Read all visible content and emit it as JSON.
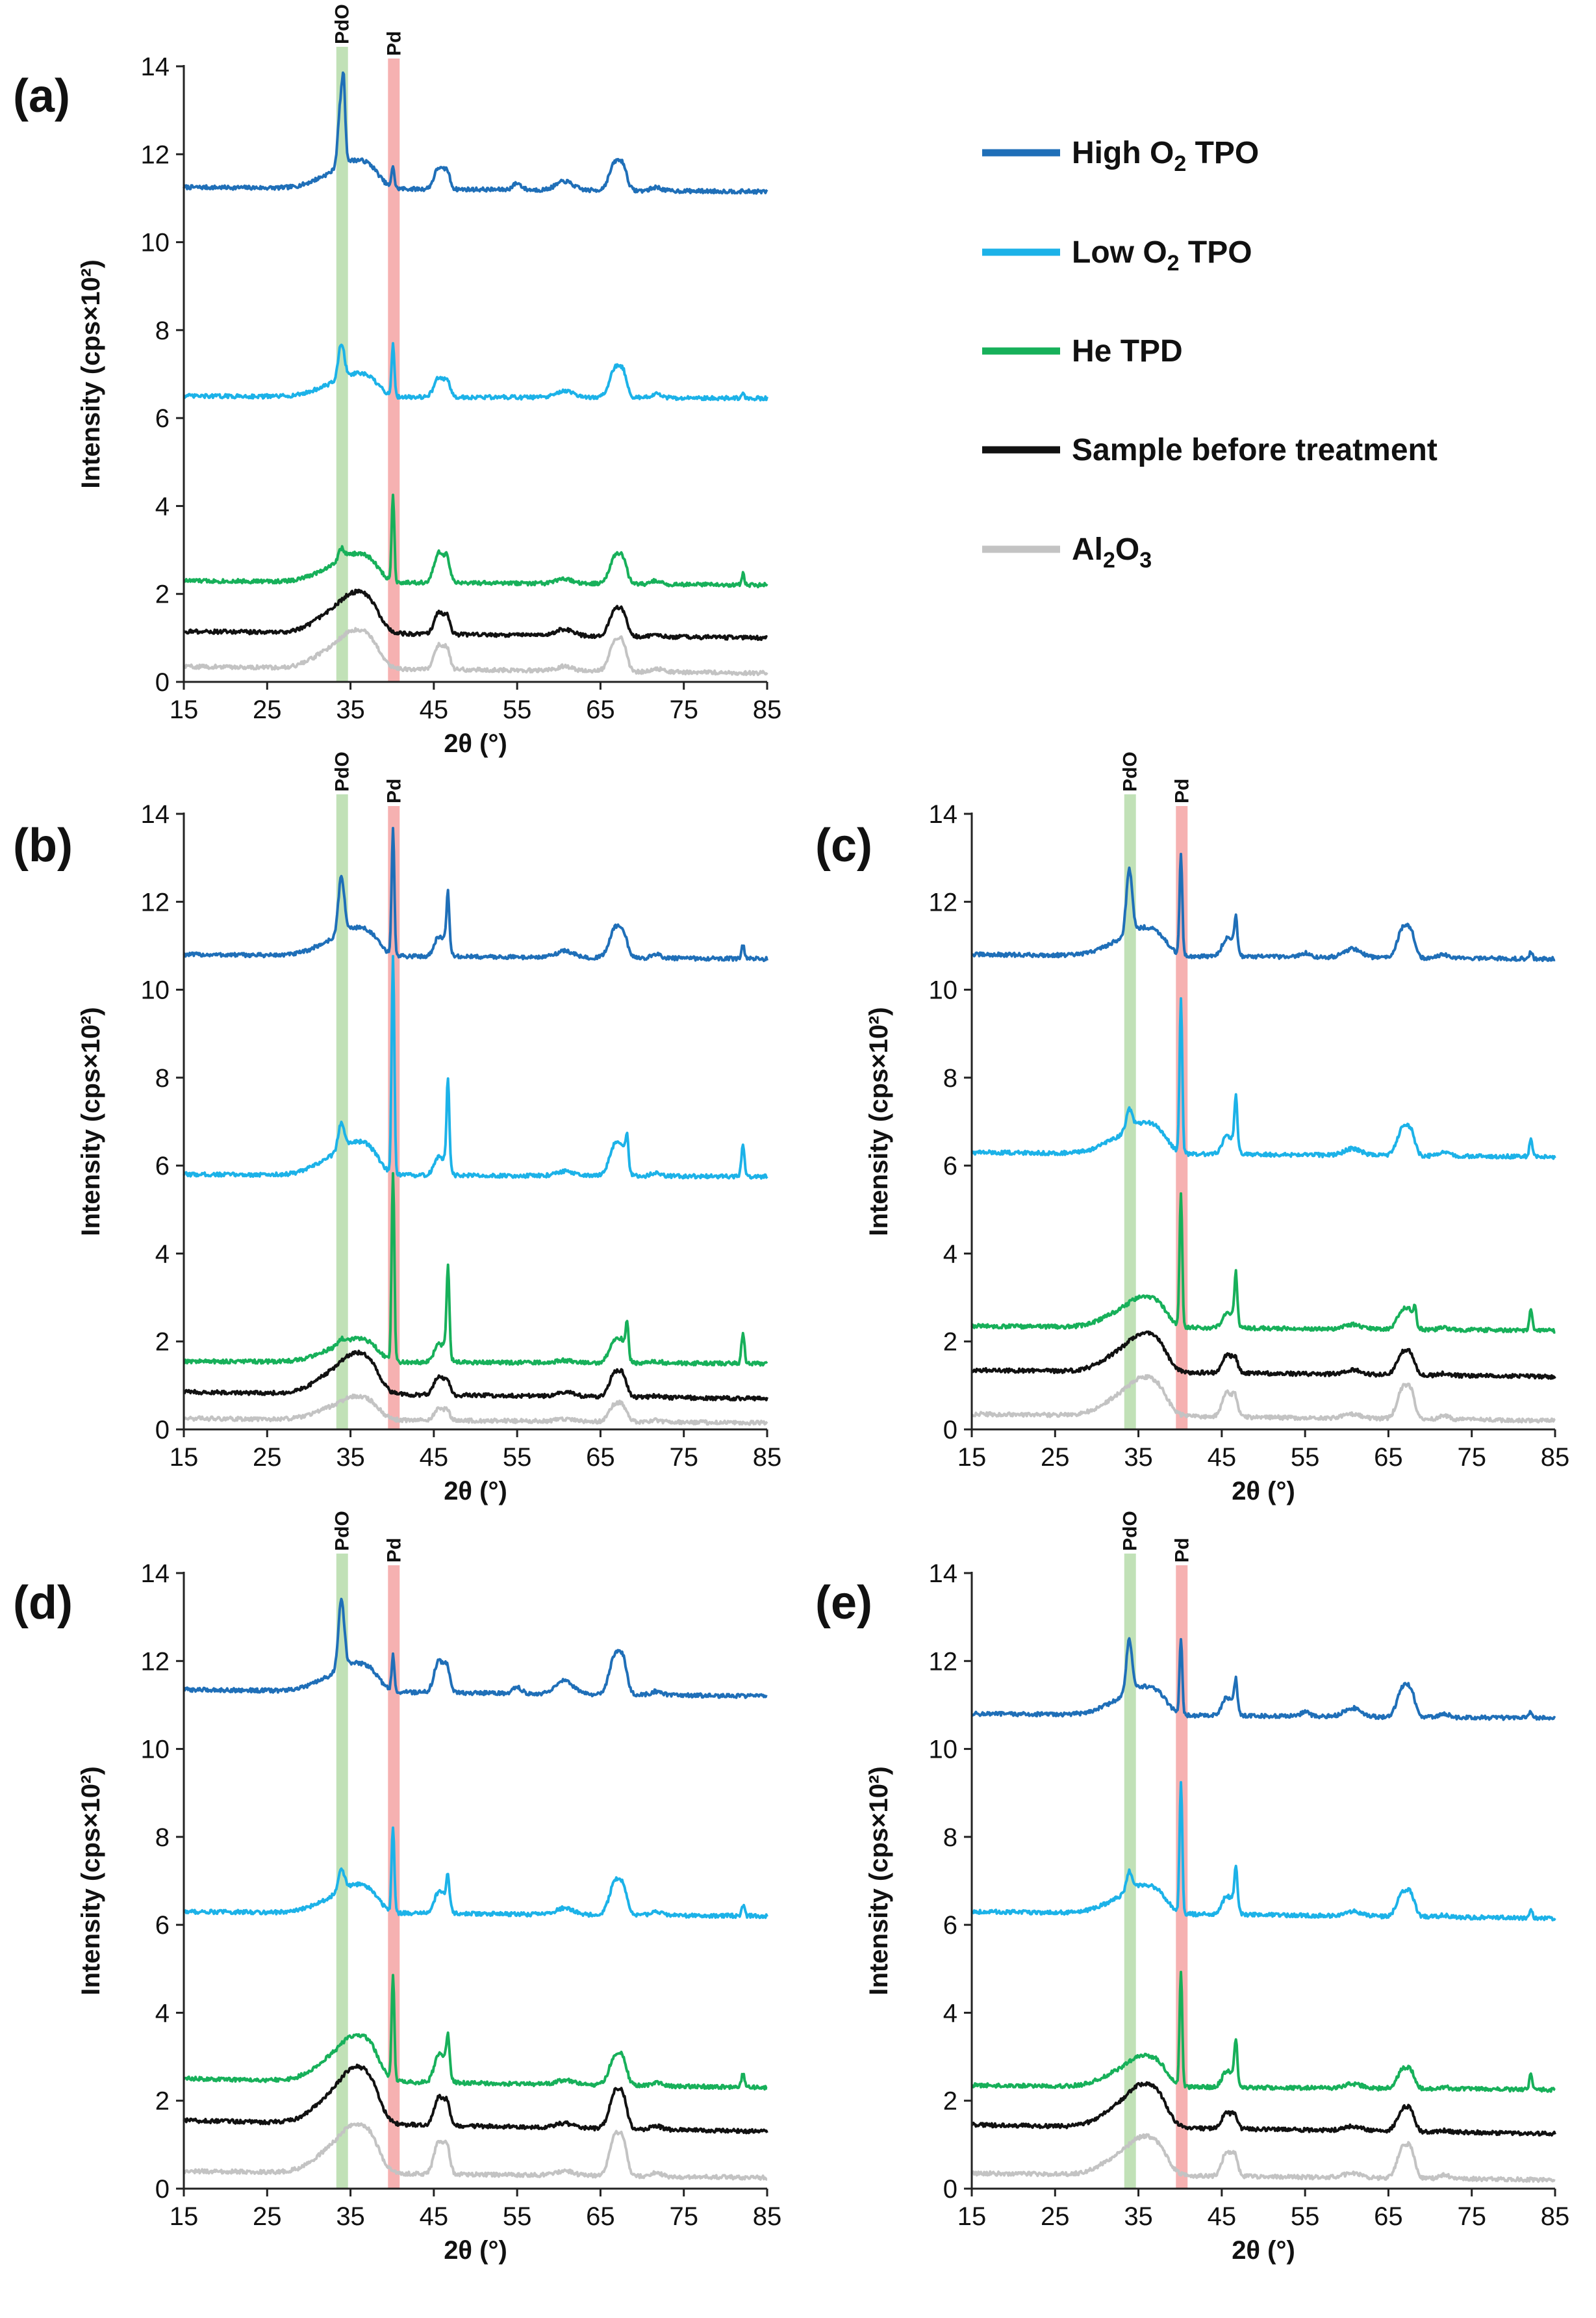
{
  "figure_labels": [
    "(a)",
    "(b)",
    "(c)",
    "(d)",
    "(e)"
  ],
  "axes": {
    "xlabel": "2θ (°)",
    "ylabel": "Intensity (cps×10²)",
    "x_ticks": [
      "15",
      "25",
      "35",
      "45",
      "55",
      "65",
      "75",
      "85"
    ],
    "y_ticks": [
      "0",
      "2",
      "4",
      "6",
      "8",
      "10",
      "12",
      "14"
    ]
  },
  "bands": {
    "PdO": {
      "label": "PdO",
      "x_range": [
        33.3,
        34.7
      ],
      "color": "#b6dcaa"
    },
    "Pd": {
      "label": "Pd",
      "x_range": [
        39.5,
        40.9
      ],
      "color": "#f4a3a3"
    }
  },
  "legend": [
    {
      "prefix": "High O",
      "sub": "2",
      "suffix": " TPO",
      "color": "#1f6fb8"
    },
    {
      "prefix": "Low O",
      "sub": "2",
      "suffix": " TPO",
      "color": "#1cb2e8"
    },
    {
      "prefix": "He TPD",
      "sub": "",
      "suffix": "",
      "color": "#17b05a"
    },
    {
      "prefix": "Sample before treatment",
      "sub": "",
      "suffix": "",
      "color": "#111111"
    },
    {
      "prefix": "Al",
      "sub": "2",
      "suffix": "O",
      "sub2": "3",
      "color": "#c3c3c3"
    }
  ],
  "chart_data": [
    {
      "panel": "(a)",
      "type": "line",
      "xlim": [
        15,
        85
      ],
      "ylim": [
        0,
        14
      ],
      "xlabel": "2θ (°)",
      "ylabel": "Intensity (cps×10²)",
      "series": [
        {
          "name": "High O2 TPO",
          "color": "#1f6fb8",
          "baseline": 11.25,
          "end": 11.15,
          "broad": 0.55,
          "pdo": 1.6,
          "pd": 0.5,
          "p46": 0.65,
          "p67": 0.8,
          "p55": 0.15,
          "p60": 0.2,
          "p82": 0.0,
          "sharp": [
            [
              34.2,
              0.9
            ]
          ]
        },
        {
          "name": "Low O2 TPO",
          "color": "#1cb2e8",
          "baseline": 6.5,
          "end": 6.45,
          "broad": 0.45,
          "pdo": 0.8,
          "pd": 1.2,
          "p46": 0.6,
          "p67": 0.85,
          "p55": 0.0,
          "p60": 0.15,
          "p82": 0.1,
          "sharp": []
        },
        {
          "name": "He TPD",
          "color": "#17b05a",
          "baseline": 2.3,
          "end": 2.2,
          "broad": 0.55,
          "pdo": 0.25,
          "pd": 1.95,
          "p46": 0.9,
          "p67": 0.8,
          "p55": 0.0,
          "p60": 0.1,
          "p82": 0.25,
          "sharp": []
        },
        {
          "name": "Sample before treatment",
          "color": "#111111",
          "baseline": 1.15,
          "end": 1.0,
          "broad": 0.8,
          "pdo": 0.0,
          "pd": 0.0,
          "p46": 0.65,
          "p67": 0.75,
          "p55": 0.0,
          "p60": 0.15,
          "p82": 0.0,
          "sharp": []
        },
        {
          "name": "Al2O3",
          "color": "#c3c3c3",
          "baseline": 0.35,
          "end": 0.2,
          "broad": 0.75,
          "pdo": 0.0,
          "pd": 0.0,
          "p46": 0.75,
          "p67": 0.9,
          "p55": 0.0,
          "p60": 0.1,
          "p82": 0.0,
          "sharp": []
        }
      ]
    },
    {
      "panel": "(b)",
      "type": "line",
      "xlim": [
        15,
        85
      ],
      "ylim": [
        0,
        14
      ],
      "xlabel": "2θ (°)",
      "ylabel": "Intensity (cps×10²)",
      "series": [
        {
          "name": "High O2 TPO",
          "color": "#1f6fb8",
          "baseline": 10.8,
          "end": 10.7,
          "broad": 0.55,
          "pdo": 1.3,
          "pd": 2.85,
          "p46": 0.6,
          "p67": 0.85,
          "p55": 0.0,
          "p60": 0.15,
          "p82": 0.3,
          "sharp": [
            [
              46.7,
              1.1
            ]
          ]
        },
        {
          "name": "Low O2 TPO",
          "color": "#1cb2e8",
          "baseline": 5.8,
          "end": 5.75,
          "broad": 0.65,
          "pdo": 0.6,
          "pd": 4.9,
          "p46": 0.55,
          "p67": 0.9,
          "p55": 0.0,
          "p60": 0.1,
          "p82": 0.75,
          "sharp": [
            [
              46.7,
              1.9
            ],
            [
              68.2,
              0.6
            ]
          ]
        },
        {
          "name": "He TPD",
          "color": "#17b05a",
          "baseline": 1.55,
          "end": 1.5,
          "broad": 0.45,
          "pdo": 0.1,
          "pd": 4.3,
          "p46": 0.55,
          "p67": 0.65,
          "p55": 0.0,
          "p60": 0.05,
          "p82": 0.7,
          "sharp": [
            [
              46.7,
              1.9
            ],
            [
              68.2,
              0.7
            ]
          ]
        },
        {
          "name": "Sample before treatment",
          "color": "#111111",
          "baseline": 0.85,
          "end": 0.7,
          "broad": 0.8,
          "pdo": 0.0,
          "pd": 0.0,
          "p46": 0.55,
          "p67": 0.7,
          "p55": 0.0,
          "p60": 0.1,
          "p82": 0.0,
          "sharp": []
        },
        {
          "name": "Al2O3",
          "color": "#c3c3c3",
          "baseline": 0.25,
          "end": 0.15,
          "broad": 0.45,
          "pdo": 0.0,
          "pd": 0.0,
          "p46": 0.35,
          "p67": 0.5,
          "p55": 0.0,
          "p60": 0.05,
          "p82": 0.0,
          "sharp": []
        }
      ]
    },
    {
      "panel": "(c)",
      "type": "line",
      "xlim": [
        15,
        85
      ],
      "ylim": [
        0,
        14
      ],
      "xlabel": "2θ (°)",
      "ylabel": "Intensity (cps×10²)",
      "series": [
        {
          "name": "High O2 TPO",
          "color": "#1f6fb8",
          "baseline": 10.8,
          "end": 10.7,
          "broad": 0.55,
          "pdo": 1.45,
          "pd": 2.3,
          "p46": 0.55,
          "p67": 0.85,
          "p55": 0.1,
          "p60": 0.2,
          "p82": 0.15,
          "sharp": [
            [
              46.7,
              0.6
            ]
          ]
        },
        {
          "name": "Low O2 TPO",
          "color": "#1cb2e8",
          "baseline": 6.3,
          "end": 6.2,
          "broad": 0.6,
          "pdo": 0.45,
          "pd": 3.5,
          "p46": 0.55,
          "p67": 0.8,
          "p55": 0.0,
          "p60": 0.15,
          "p82": 0.4,
          "sharp": [
            [
              46.7,
              1.0
            ]
          ]
        },
        {
          "name": "He TPD",
          "color": "#17b05a",
          "baseline": 2.35,
          "end": 2.25,
          "broad": 0.6,
          "pdo": 0.0,
          "pd": 3.0,
          "p46": 0.45,
          "p67": 0.55,
          "p55": 0.0,
          "p60": 0.1,
          "p82": 0.45,
          "sharp": [
            [
              46.7,
              1.0
            ],
            [
              68.2,
              0.3
            ]
          ]
        },
        {
          "name": "Sample before treatment",
          "color": "#111111",
          "baseline": 1.35,
          "end": 1.2,
          "broad": 0.75,
          "pdo": 0.0,
          "pd": 0.0,
          "p46": 0.55,
          "p67": 0.65,
          "p55": 0.0,
          "p60": 0.1,
          "p82": 0.0,
          "sharp": []
        },
        {
          "name": "Al2O3",
          "color": "#c3c3c3",
          "baseline": 0.35,
          "end": 0.2,
          "broad": 0.75,
          "pdo": 0.0,
          "pd": 0.0,
          "p46": 0.75,
          "p67": 0.9,
          "p55": 0.0,
          "p60": 0.1,
          "p82": 0.0,
          "sharp": []
        }
      ]
    },
    {
      "panel": "(d)",
      "type": "line",
      "xlim": [
        15,
        85
      ],
      "ylim": [
        0,
        14
      ],
      "xlabel": "2θ (°)",
      "ylabel": "Intensity (cps×10²)",
      "series": [
        {
          "name": "High O2 TPO",
          "color": "#1f6fb8",
          "baseline": 11.35,
          "end": 11.2,
          "broad": 0.55,
          "pdo": 1.6,
          "pd": 0.8,
          "p46": 0.95,
          "p67": 1.15,
          "p55": 0.15,
          "p60": 0.3,
          "p82": 0.0,
          "sharp": []
        },
        {
          "name": "Low O2 TPO",
          "color": "#1cb2e8",
          "baseline": 6.3,
          "end": 6.2,
          "broad": 0.55,
          "pdo": 0.5,
          "pd": 1.95,
          "p46": 0.65,
          "p67": 0.95,
          "p55": 0.0,
          "p60": 0.15,
          "p82": 0.25,
          "sharp": [
            [
              46.7,
              0.5
            ]
          ]
        },
        {
          "name": "He TPD",
          "color": "#17b05a",
          "baseline": 2.5,
          "end": 2.3,
          "broad": 0.9,
          "pdo": 0.0,
          "pd": 2.4,
          "p46": 0.85,
          "p67": 0.85,
          "p55": 0.0,
          "p60": 0.1,
          "p82": 0.3,
          "sharp": [
            [
              46.7,
              0.6
            ]
          ]
        },
        {
          "name": "Sample before treatment",
          "color": "#111111",
          "baseline": 1.55,
          "end": 1.3,
          "broad": 1.1,
          "pdo": 0.0,
          "pd": 0.0,
          "p46": 0.85,
          "p67": 1.05,
          "p55": 0.0,
          "p60": 0.1,
          "p82": 0.0,
          "sharp": []
        },
        {
          "name": "Al2O3",
          "color": "#c3c3c3",
          "baseline": 0.4,
          "end": 0.25,
          "broad": 0.95,
          "pdo": 0.0,
          "pd": 0.0,
          "p46": 1.0,
          "p67": 1.15,
          "p55": 0.0,
          "p60": 0.1,
          "p82": 0.0,
          "sharp": []
        }
      ]
    },
    {
      "panel": "(e)",
      "type": "line",
      "xlim": [
        15,
        85
      ],
      "ylim": [
        0,
        14
      ],
      "xlabel": "2θ (°)",
      "ylabel": "Intensity (cps×10²)",
      "series": [
        {
          "name": "High O2 TPO",
          "color": "#1f6fb8",
          "baseline": 10.8,
          "end": 10.7,
          "broad": 0.55,
          "pdo": 1.2,
          "pd": 1.7,
          "p46": 0.55,
          "p67": 0.85,
          "p55": 0.1,
          "p60": 0.2,
          "p82": 0.15,
          "sharp": [
            [
              46.7,
              0.5
            ]
          ]
        },
        {
          "name": "Low O2 TPO",
          "color": "#1cb2e8",
          "baseline": 6.3,
          "end": 6.15,
          "broad": 0.55,
          "pdo": 0.45,
          "pd": 2.95,
          "p46": 0.55,
          "p67": 0.7,
          "p55": 0.0,
          "p60": 0.1,
          "p82": 0.2,
          "sharp": [
            [
              46.7,
              0.8
            ]
          ]
        },
        {
          "name": "He TPD",
          "color": "#17b05a",
          "baseline": 2.35,
          "end": 2.25,
          "broad": 0.6,
          "pdo": 0.0,
          "pd": 2.55,
          "p46": 0.5,
          "p67": 0.55,
          "p55": 0.0,
          "p60": 0.1,
          "p82": 0.35,
          "sharp": [
            [
              46.7,
              0.8
            ]
          ]
        },
        {
          "name": "Sample before treatment",
          "color": "#111111",
          "baseline": 1.45,
          "end": 1.25,
          "broad": 0.85,
          "pdo": 0.0,
          "pd": 0.0,
          "p46": 0.5,
          "p67": 0.65,
          "p55": 0.0,
          "p60": 0.1,
          "p82": 0.0,
          "sharp": []
        },
        {
          "name": "Al2O3",
          "color": "#c3c3c3",
          "baseline": 0.35,
          "end": 0.2,
          "broad": 0.75,
          "pdo": 0.0,
          "pd": 0.0,
          "p46": 0.75,
          "p67": 0.9,
          "p55": 0.0,
          "p60": 0.1,
          "p82": 0.0,
          "sharp": []
        }
      ]
    }
  ]
}
